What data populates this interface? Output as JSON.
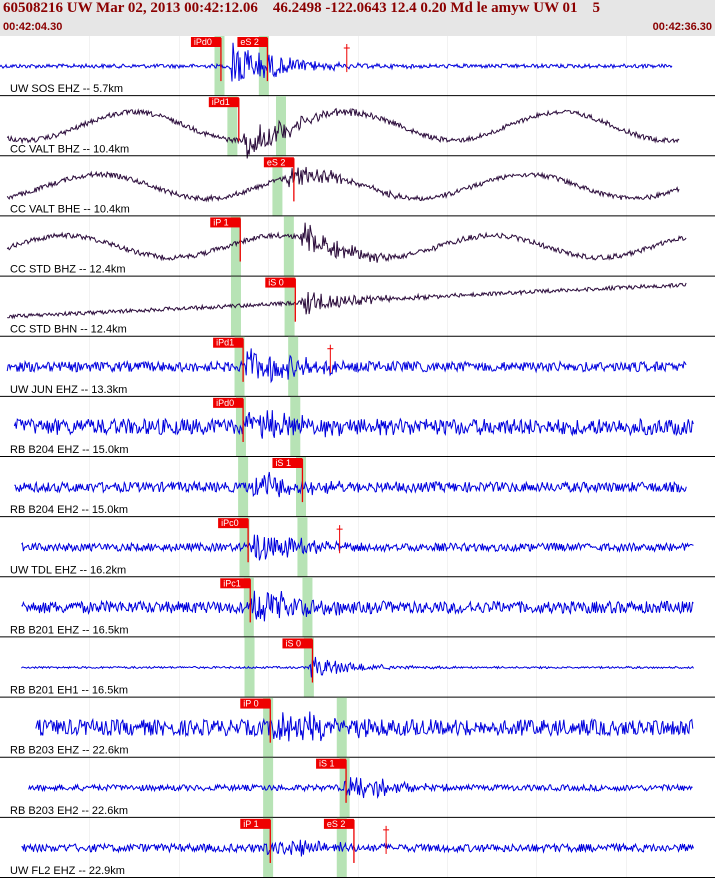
{
  "header": {
    "title": "60508216 UW Mar 02, 2013 00:42:12.06    46.2498 -122.0643 12.4 0.20 Md le amyw UW 01    5",
    "start_time": "00:42:04.30",
    "end_time": "00:42:36.30"
  },
  "chart_data": {
    "type": "seismogram",
    "x_range": [
      "00:42:04.30",
      "00:42:36.30"
    ],
    "grid": true,
    "colors": {
      "blue_trace": "#0000dd",
      "dark_trace": "#2a0a3a",
      "pick_box": "#ee0000",
      "pick_line": "#ee0000",
      "window": "#b7e3b5"
    },
    "traces": [
      {
        "label": "UW SOS EHZ -- 5.7km",
        "color": "blue",
        "kind": "noise",
        "amp": 2,
        "start": 0.0,
        "end": 0.94,
        "onset": 0.32,
        "burst": 28,
        "picks": [
          {
            "label": "iPd0",
            "pos": 0.309,
            "win": 0.307
          },
          {
            "label": "eS 2",
            "pos": 0.374,
            "win": 0.369
          }
        ],
        "coda": 0.485
      },
      {
        "label": "CC VALT BHZ -- 10.4km",
        "color": "dark",
        "kind": "wave",
        "amp": 14,
        "start": 0.01,
        "end": 0.95,
        "onset": 0.34,
        "burst": 22,
        "picks": [
          {
            "label": "iPd1",
            "pos": 0.334,
            "win": 0.325
          },
          {
            "label": "",
            "pos": 0,
            "win": 0.393
          }
        ]
      },
      {
        "label": "CC VALT BHE -- 10.4km",
        "color": "dark",
        "kind": "wave",
        "amp": 12,
        "start": 0.01,
        "end": 0.95,
        "onset": 0.4,
        "burst": 14,
        "picks": [
          {
            "label": "eS 2",
            "pos": 0.411,
            "win": 0.388
          }
        ]
      },
      {
        "label": "CC STD BHZ -- 12.4km",
        "color": "dark",
        "kind": "wave",
        "amp": 11,
        "start": 0.01,
        "end": 0.96,
        "onset": 0.42,
        "burst": 20,
        "picks": [
          {
            "label": "iP 1",
            "pos": 0.336,
            "win": 0.33
          },
          {
            "label": "",
            "pos": 0,
            "win": 0.404
          }
        ]
      },
      {
        "label": "CC STD BHN -- 12.4km",
        "color": "dark",
        "kind": "drift",
        "amp": 12,
        "start": 0.01,
        "end": 0.96,
        "onset": 0.42,
        "burst": 14,
        "picks": [
          {
            "label": "iS 0",
            "pos": 0.413,
            "win": 0.405
          },
          {
            "label": "",
            "pos": 0,
            "win": 0.33
          }
        ]
      },
      {
        "label": "UW JUN EHZ -- 13.3km",
        "color": "blue",
        "kind": "noise",
        "amp": 5,
        "start": 0.01,
        "end": 0.96,
        "onset": 0.34,
        "burst": 24,
        "picks": [
          {
            "label": "iPd1",
            "pos": 0.34,
            "win": 0.335
          },
          {
            "label": "",
            "pos": 0,
            "win": 0.41
          }
        ],
        "coda": 0.462
      },
      {
        "label": "RB B204 EHZ -- 15.0km",
        "color": "blue",
        "kind": "noise",
        "amp": 8,
        "start": 0.02,
        "end": 0.97,
        "onset": 0.34,
        "burst": 18,
        "picks": [
          {
            "label": "iPd0",
            "pos": 0.34,
            "win": 0.337
          },
          {
            "label": "",
            "pos": 0,
            "win": 0.413
          }
        ]
      },
      {
        "label": "RB B204 EH2 -- 15.0km",
        "color": "blue",
        "kind": "noise",
        "amp": 5,
        "start": 0.02,
        "end": 0.96,
        "onset": 0.35,
        "burst": 18,
        "picks": [
          {
            "label": "iS 1",
            "pos": 0.423,
            "win": 0.421
          },
          {
            "label": "",
            "pos": 0,
            "win": 0.34
          }
        ]
      },
      {
        "label": "UW TDL EHZ -- 16.2km",
        "color": "blue",
        "kind": "noise",
        "amp": 4,
        "start": 0.03,
        "end": 0.97,
        "onset": 0.35,
        "burst": 18,
        "picks": [
          {
            "label": "iPc0",
            "pos": 0.347,
            "win": 0.342
          },
          {
            "label": "",
            "pos": 0,
            "win": 0.423
          }
        ],
        "coda": 0.475
      },
      {
        "label": "RB B201 EHZ -- 16.5km",
        "color": "blue",
        "kind": "noise",
        "amp": 6,
        "start": 0.03,
        "end": 0.97,
        "onset": 0.35,
        "burst": 22,
        "picks": [
          {
            "label": "iPc1",
            "pos": 0.35,
            "win": 0.348
          },
          {
            "label": "",
            "pos": 0,
            "win": 0.43
          }
        ]
      },
      {
        "label": "RB B201 EH1 -- 16.5km",
        "color": "blue",
        "kind": "noise",
        "amp": 1,
        "start": 0.03,
        "end": 0.97,
        "onset": 0.43,
        "burst": 12,
        "picks": [
          {
            "label": "iS 0",
            "pos": 0.437,
            "win": 0.432
          },
          {
            "label": "",
            "pos": 0,
            "win": 0.349
          }
        ]
      },
      {
        "label": "RB B203 EHZ -- 22.6km",
        "color": "blue",
        "kind": "noise",
        "amp": 8,
        "start": 0.05,
        "end": 0.97,
        "onset": 0.38,
        "burst": 22,
        "picks": [
          {
            "label": "iP 0",
            "pos": 0.378,
            "win": 0.375
          },
          {
            "label": "",
            "pos": 0,
            "win": 0.478
          }
        ]
      },
      {
        "label": "RB B203 EH2 -- 22.6km",
        "color": "blue",
        "kind": "noise",
        "amp": 3,
        "start": 0.04,
        "end": 0.97,
        "onset": 0.48,
        "burst": 16,
        "picks": [
          {
            "label": "iS 1",
            "pos": 0.484,
            "win": 0.482
          },
          {
            "label": "",
            "pos": 0,
            "win": 0.375
          }
        ]
      },
      {
        "label": "UW FL2 EHZ -- 22.9km",
        "color": "blue",
        "kind": "noise",
        "amp": 4,
        "start": 0.03,
        "end": 0.97,
        "onset": 0.37,
        "burst": 14,
        "picks": [
          {
            "label": "iP 1",
            "pos": 0.378,
            "win": 0.375
          },
          {
            "label": "eS 2",
            "pos": 0.495,
            "win": 0.478
          }
        ],
        "coda": 0.54
      }
    ]
  }
}
